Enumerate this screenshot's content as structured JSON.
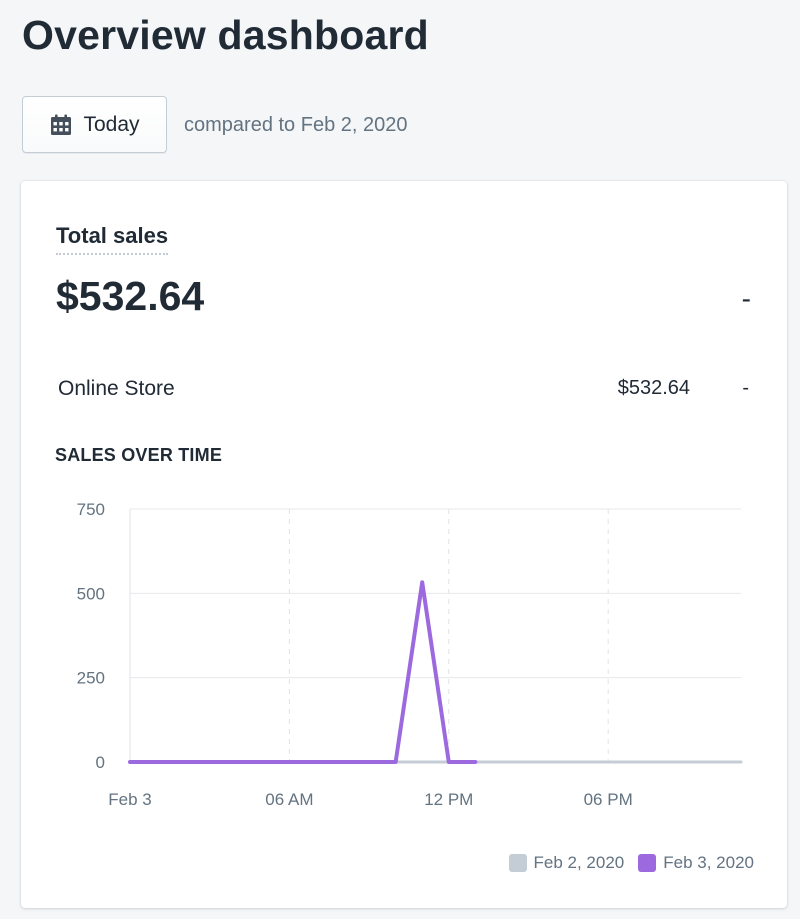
{
  "header": {
    "title": "Overview dashboard"
  },
  "toolbar": {
    "date_label": "Today",
    "date_icon": "calendar-icon",
    "compare_text": "compared to Feb 2, 2020"
  },
  "card": {
    "metric_title": "Total sales",
    "metric_value": "$532.64",
    "metric_change": "-",
    "channels": [
      {
        "name": "Online Store",
        "value": "$532.64",
        "change": "-"
      }
    ],
    "section_heading": "SALES OVER TIME"
  },
  "colors": {
    "current_series": "#9c6ade",
    "previous_series": "#c4cdd5"
  },
  "chart_data": {
    "type": "line",
    "title": "SALES OVER TIME",
    "xlabel": "",
    "ylabel": "",
    "x_ticks": [
      "Feb 3",
      "06 AM",
      "12 PM",
      "06 PM"
    ],
    "y_ticks": [
      "0",
      "250",
      "500",
      "750"
    ],
    "ylim": [
      0,
      750
    ],
    "xlim_hours": [
      0,
      23
    ],
    "grid": true,
    "legend_position": "bottom-right",
    "series": [
      {
        "name": "Feb 2, 2020",
        "color": "#c4cdd5",
        "points": [
          [
            0,
            0
          ],
          [
            1,
            0
          ],
          [
            2,
            0
          ],
          [
            3,
            0
          ],
          [
            4,
            0
          ],
          [
            5,
            0
          ],
          [
            6,
            0
          ],
          [
            7,
            0
          ],
          [
            8,
            0
          ],
          [
            9,
            0
          ],
          [
            10,
            0
          ],
          [
            11,
            0
          ],
          [
            12,
            0
          ],
          [
            13,
            0
          ],
          [
            14,
            0
          ],
          [
            15,
            0
          ],
          [
            16,
            0
          ],
          [
            17,
            0
          ],
          [
            18,
            0
          ],
          [
            19,
            0
          ],
          [
            20,
            0
          ],
          [
            21,
            0
          ],
          [
            22,
            0
          ],
          [
            23,
            0
          ]
        ]
      },
      {
        "name": "Feb 3, 2020",
        "color": "#9c6ade",
        "points": [
          [
            0,
            0
          ],
          [
            1,
            0
          ],
          [
            2,
            0
          ],
          [
            3,
            0
          ],
          [
            4,
            0
          ],
          [
            5,
            0
          ],
          [
            6,
            0
          ],
          [
            7,
            0
          ],
          [
            8,
            0
          ],
          [
            9,
            0
          ],
          [
            10,
            0
          ],
          [
            11,
            532.64
          ],
          [
            12,
            0
          ],
          [
            13,
            0
          ]
        ]
      }
    ]
  }
}
